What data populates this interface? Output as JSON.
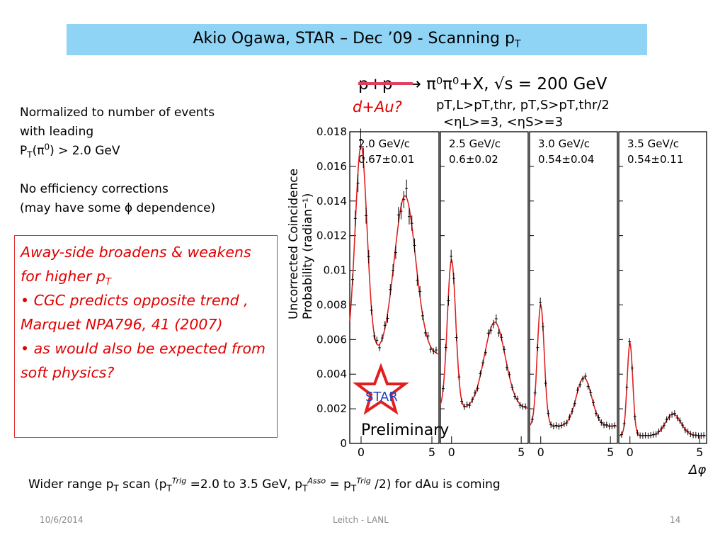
{
  "title": {
    "main": "Akio Ogawa, STAR – Dec ’09 - Scanning p",
    "sub": "T"
  },
  "notes": {
    "line1": "Normalized to number of events",
    "line2": "with leading",
    "line3_pre": " P",
    "line3_sub": "T",
    "line3_mid": "(π",
    "line3_sup": "0",
    "line3_post": ") > 2.0 GeV",
    "line4": "No efficiency corrections",
    "line5": "(may have some ϕ dependence)"
  },
  "red_box": {
    "p1_text": "Away-side broadens & weakens for higher p",
    "p1_sub": "T",
    "b1": "• CGC predicts opposite trend , Marquet NPA796, 41 (2007)",
    "b2": "• as would also be expected from soft physics?"
  },
  "plot": {
    "header": "p+p  ⟶  π⁰π⁰+X, √s = 200 GeV",
    "dau": "d+Au?",
    "cuts1": "pT,L>pT,thr, pT,S>pT,thr/2",
    "cuts2": "<ηL>=3, <ηS>=3",
    "ylabel1": "Uncorrected Coincidence",
    "ylabel2": "Probability (radian⁻¹)",
    "xlabel": "Δφ",
    "star_label": "STAR",
    "preliminary": "Preliminary",
    "yticks": [
      "0.018",
      "0.016",
      "0.014",
      "0.012",
      "0.01",
      "0.008",
      "0.006",
      "0.004",
      "0.002",
      "0"
    ],
    "xticks": [
      "0",
      "5"
    ]
  },
  "chart_data": {
    "type": "line",
    "title": "p+p → π⁰π⁰+X, √s = 200 GeV",
    "xlabel": "Δφ",
    "ylabel": "Uncorrected Coincidence Probability (radian⁻¹)",
    "xlim": [
      -0.8,
      5.5
    ],
    "ylim": [
      0,
      0.018
    ],
    "grid": false,
    "panels": [
      {
        "label": "2.0 GeV/c",
        "value": "0.67±0.01",
        "near": {
          "mu": 0.0,
          "peak": 0.0172,
          "sigma": 0.42
        },
        "away": {
          "mu": 3.1,
          "peak": 0.0143,
          "sigma": 0.75
        },
        "base": 0.0051
      },
      {
        "label": "2.5 GeV/c",
        "value": "0.6±0.02",
        "near": {
          "mu": 0.0,
          "peak": 0.0106,
          "sigma": 0.3
        },
        "away": {
          "mu": 3.1,
          "peak": 0.007,
          "sigma": 0.75
        },
        "base": 0.002
      },
      {
        "label": "3.0 GeV/c",
        "value": "0.54±0.04",
        "near": {
          "mu": 0.0,
          "peak": 0.008,
          "sigma": 0.25
        },
        "away": {
          "mu": 3.1,
          "peak": 0.0038,
          "sigma": 0.55
        },
        "base": 0.001
      },
      {
        "label": "3.5 GeV/c",
        "value": "0.54±0.11",
        "near": {
          "mu": 0.0,
          "peak": 0.0058,
          "sigma": 0.2
        },
        "away": {
          "mu": 3.1,
          "peak": 0.0017,
          "sigma": 0.55
        },
        "base": 0.00045
      }
    ]
  },
  "caption": {
    "pre": "Wider range p",
    "s1": "T",
    "m1": " scan (p",
    "s2": "T",
    "p2": "Trig",
    "m2": " =2.0 to 3.5 GeV, p",
    "s3": "T",
    "p3": "Asso",
    "m3": " = p",
    "s4": "T",
    "p4": "Trig",
    "post": " /2) for dAu is coming"
  },
  "footer": {
    "date": "10/6/2014",
    "center": "Leitch - LANL",
    "page": "14"
  }
}
